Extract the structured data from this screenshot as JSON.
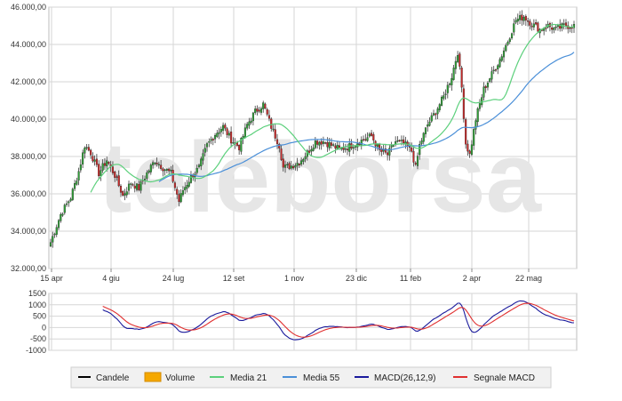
{
  "watermark": "teleborsa",
  "chart_data": [
    {
      "type": "candlestick",
      "ylim": [
        32000,
        46000
      ],
      "ytick_values": [
        32000,
        34000,
        36000,
        38000,
        40000,
        42000,
        44000,
        46000
      ],
      "ytick_labels": [
        "32.000,00",
        "34.000,00",
        "36.000,00",
        "38.000,00",
        "40.000,00",
        "42.000,00",
        "44.000,00",
        "46.000,00"
      ],
      "xtick_labels": [
        "15 apr",
        "4 giu",
        "24 lug",
        "12 set",
        "1 nov",
        "23 dic",
        "11 feb",
        "2 apr",
        "22 mag"
      ],
      "grid": true,
      "series": [
        {
          "name": "Candele",
          "close_anchors": [
            [
              0,
              33400
            ],
            [
              5,
              34900
            ],
            [
              10,
              35800
            ],
            [
              14,
              37200
            ],
            [
              17,
              38600
            ],
            [
              20,
              38200
            ],
            [
              24,
              37100
            ],
            [
              28,
              37800
            ],
            [
              32,
              37000
            ],
            [
              36,
              35900
            ],
            [
              40,
              36600
            ],
            [
              44,
              36300
            ],
            [
              48,
              37100
            ],
            [
              52,
              37800
            ],
            [
              56,
              37400
            ],
            [
              60,
              37100
            ],
            [
              64,
              35600
            ],
            [
              66,
              36200
            ],
            [
              70,
              36900
            ],
            [
              74,
              37400
            ],
            [
              78,
              38600
            ],
            [
              82,
              39200
            ],
            [
              86,
              39600
            ],
            [
              90,
              38900
            ],
            [
              94,
              38500
            ],
            [
              98,
              39700
            ],
            [
              102,
              40400
            ],
            [
              106,
              40800
            ],
            [
              110,
              39600
            ],
            [
              114,
              38600
            ],
            [
              116,
              37400
            ],
            [
              120,
              37500
            ],
            [
              124,
              37700
            ],
            [
              128,
              38200
            ],
            [
              132,
              38800
            ],
            [
              136,
              38800
            ],
            [
              140,
              38600
            ],
            [
              144,
              38400
            ],
            [
              148,
              38500
            ],
            [
              152,
              38700
            ],
            [
              156,
              38900
            ],
            [
              160,
              39100
            ],
            [
              164,
              38300
            ],
            [
              168,
              38100
            ],
            [
              172,
              38800
            ],
            [
              176,
              38700
            ],
            [
              180,
              38300
            ],
            [
              182,
              37400
            ],
            [
              184,
              38600
            ],
            [
              188,
              39700
            ],
            [
              192,
              40400
            ],
            [
              196,
              41200
            ],
            [
              200,
              42300
            ],
            [
              203,
              43600
            ],
            [
              205,
              41700
            ],
            [
              207,
              38700
            ],
            [
              209,
              38100
            ],
            [
              212,
              40000
            ],
            [
              216,
              41600
            ],
            [
              220,
              42400
            ],
            [
              224,
              43200
            ],
            [
              228,
              44200
            ],
            [
              232,
              45300
            ],
            [
              236,
              45500
            ],
            [
              240,
              45100
            ],
            [
              244,
              44800
            ],
            [
              248,
              45000
            ],
            [
              252,
              44800
            ],
            [
              256,
              45000
            ]
          ]
        },
        {
          "name": "Media 21",
          "color": "#5cd07c"
        },
        {
          "name": "Media 55",
          "color": "#4a8fd8"
        }
      ]
    },
    {
      "type": "line",
      "ylim": [
        -1000,
        1500
      ],
      "ytick_values": [
        1500,
        1000,
        500,
        0,
        -500,
        -1000
      ],
      "ytick_labels": [
        "1500",
        "1000",
        "500",
        "0",
        "-500",
        "-1000"
      ],
      "series": [
        {
          "name": "MACD(26,12,9)",
          "color": "#1a1a9c"
        },
        {
          "name": "Segnale MACD",
          "color": "#e03030"
        }
      ]
    }
  ],
  "legend": [
    {
      "label": "Candele",
      "color": "#000000",
      "kind": "line"
    },
    {
      "label": "Volume",
      "color": "#f5a800",
      "kind": "box"
    },
    {
      "label": "Media 21",
      "color": "#5cd07c",
      "kind": "line"
    },
    {
      "label": "Media 55",
      "color": "#4a8fd8",
      "kind": "line"
    },
    {
      "label": "MACD(26,12,9)",
      "color": "#1a1a9c",
      "kind": "line"
    },
    {
      "label": "Segnale MACD",
      "color": "#e03030",
      "kind": "line"
    }
  ]
}
